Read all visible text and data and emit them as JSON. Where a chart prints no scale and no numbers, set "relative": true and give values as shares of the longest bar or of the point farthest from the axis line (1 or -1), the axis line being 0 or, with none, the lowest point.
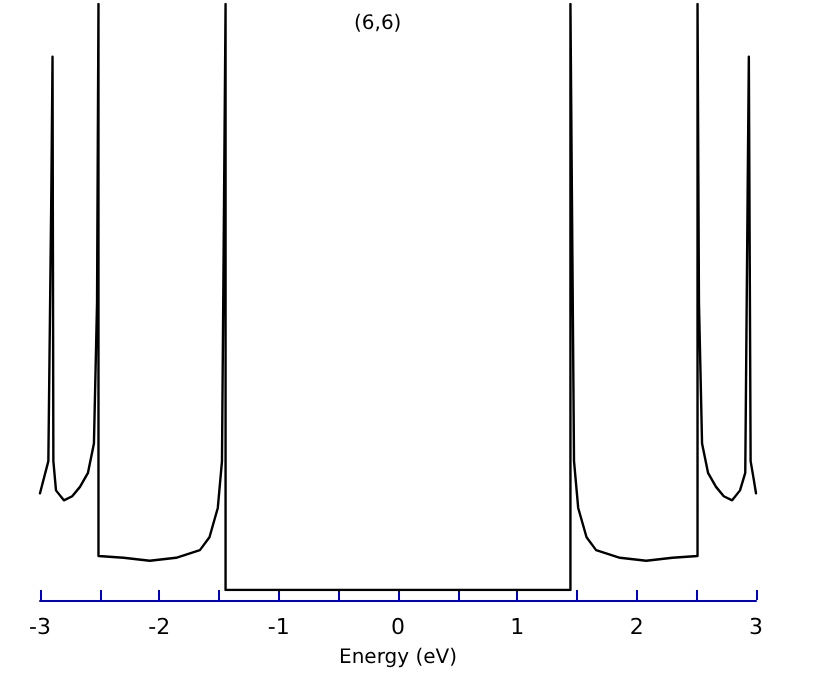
{
  "chart_data": {
    "type": "line",
    "title": "(6,6)",
    "xlabel": "Energy (eV)",
    "relative": true,
    "xlim": [
      -3,
      3
    ],
    "xticks": [
      -3,
      {
        "value": -2.5,
        "label": null
      },
      -2,
      {
        "value": -1.5,
        "label": null
      },
      -1,
      {
        "value": -0.5,
        "label": null
      },
      0,
      {
        "value": 0.5,
        "label": null
      },
      1,
      {
        "value": 1.5,
        "label": null
      },
      2,
      {
        "value": 2.5,
        "label": null
      },
      3
    ],
    "grid": false,
    "marker": "none",
    "line_style": "solid",
    "series": [
      {
        "color": "#000000",
        "x": [
          -3.0,
          -2.93,
          -2.905,
          -2.895,
          -2.888,
          -2.866,
          -2.8,
          -2.73,
          -2.665,
          -2.598,
          -2.548,
          -2.522,
          -2.51,
          -2.51,
          -2.3,
          -2.08,
          -1.86,
          -1.66,
          -1.58,
          -1.51,
          -1.475,
          -1.458,
          -1.445,
          -1.445,
          1.445,
          1.445,
          1.458,
          1.475,
          1.51,
          1.58,
          1.66,
          1.86,
          2.08,
          2.3,
          2.51,
          2.51,
          2.522,
          2.548,
          2.598,
          2.665,
          2.73,
          2.8,
          2.866,
          2.91,
          2.93,
          2.94,
          2.955,
          2.98,
          3.0
        ],
        "values": [
          0.165,
          0.22,
          0.68,
          0.91,
          0.22,
          0.17,
          0.153,
          0.16,
          0.176,
          0.2,
          0.25,
          0.49,
          1,
          0.058,
          0.055,
          0.05,
          0.055,
          0.068,
          0.09,
          0.14,
          0.22,
          0.66,
          1,
          0,
          0,
          1,
          0.66,
          0.22,
          0.14,
          0.09,
          0.068,
          0.055,
          0.05,
          0.055,
          0.058,
          1,
          0.49,
          0.25,
          0.2,
          0.176,
          0.16,
          0.153,
          0.17,
          0.2,
          0.68,
          0.91,
          0.22,
          0.19,
          0.165
        ]
      }
    ]
  }
}
